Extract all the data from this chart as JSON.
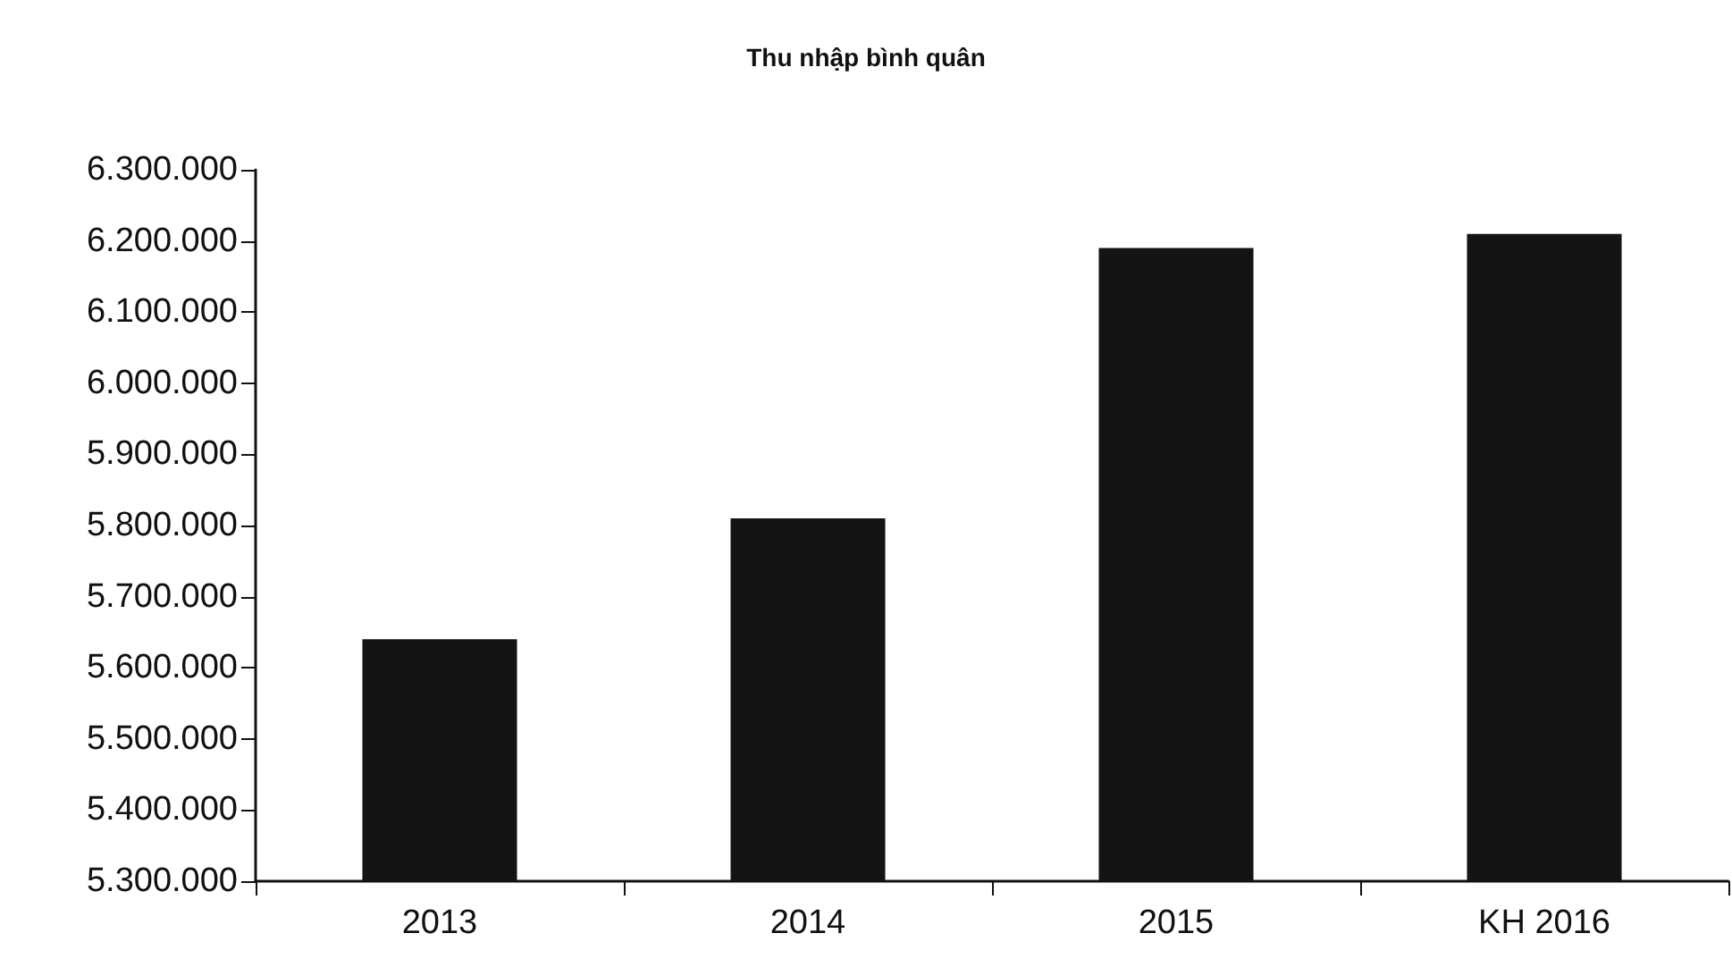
{
  "chart_data": {
    "type": "bar",
    "title": "Thu nhập bình quân",
    "categories": [
      "2013",
      "2014",
      "2015",
      "KH 2016"
    ],
    "values": [
      5640000,
      5810000,
      6190000,
      6210000
    ],
    "color": "#141414",
    "ylim": [
      5300000,
      6300000
    ],
    "yticks": [
      {
        "value": 5300000,
        "label": "5.300.000"
      },
      {
        "value": 5400000,
        "label": "5.400.000"
      },
      {
        "value": 5500000,
        "label": "5.500.000"
      },
      {
        "value": 5600000,
        "label": "5.600.000"
      },
      {
        "value": 5700000,
        "label": "5.700.000"
      },
      {
        "value": 5800000,
        "label": "5.800.000"
      },
      {
        "value": 5900000,
        "label": "5.900.000"
      },
      {
        "value": 6000000,
        "label": "6.000.000"
      },
      {
        "value": 6100000,
        "label": "6.100.000"
      },
      {
        "value": 6200000,
        "label": "6.200.000"
      },
      {
        "value": 6300000,
        "label": "6.300.000"
      }
    ],
    "grid": false
  }
}
